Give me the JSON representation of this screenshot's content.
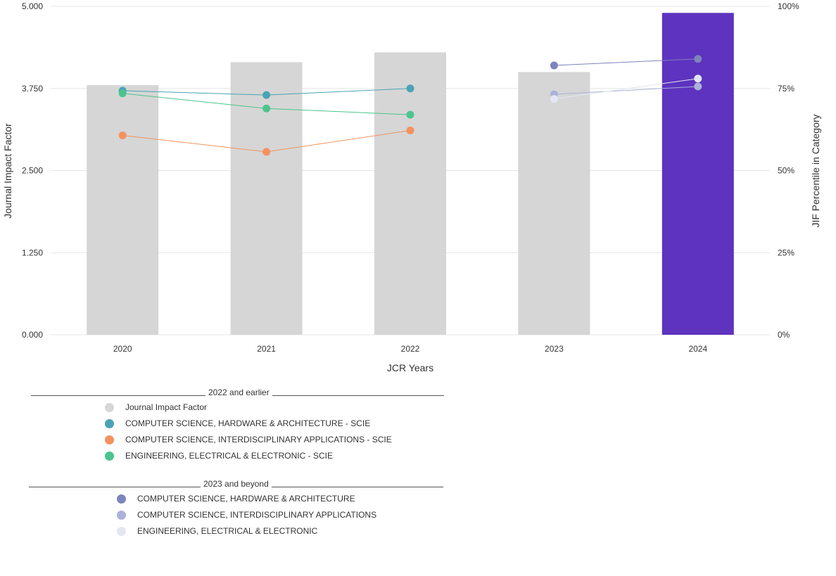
{
  "chart_data": {
    "type": "bar",
    "categories": [
      "2020",
      "2021",
      "2022",
      "2023",
      "2024"
    ],
    "xlabel": "JCR Years",
    "ylabel": "Journal Impact Factor",
    "y2label": "JIF Percentile in Category",
    "ylim": [
      0,
      5
    ],
    "y2lim": [
      0,
      100
    ],
    "yticks": [
      "0.000",
      "1.250",
      "2.500",
      "3.750",
      "5.000"
    ],
    "y2ticks": [
      "0%",
      "25%",
      "50%",
      "75%",
      "100%"
    ],
    "grid": true,
    "bars": {
      "name": "Journal Impact Factor",
      "values": [
        3.8,
        4.15,
        4.3,
        4.0,
        4.9
      ],
      "colors": [
        "#d6d6d6",
        "#d6d6d6",
        "#d6d6d6",
        "#d6d6d6",
        "#5e33bf"
      ]
    },
    "series": [
      {
        "name": "COMPUTER SCIENCE, HARDWARE & ARCHITECTURE - SCIE",
        "color": "#4aa3b5",
        "axis": "percentile",
        "values": [
          74.3,
          73.0,
          75.0,
          null,
          null
        ]
      },
      {
        "name": "COMPUTER SCIENCE, INTERDISCIPLINARY APPLICATIONS - SCIE",
        "color": "#f2925f",
        "axis": "percentile",
        "values": [
          60.7,
          55.7,
          62.2,
          null,
          null
        ]
      },
      {
        "name": "ENGINEERING, ELECTRICAL & ELECTRONIC - SCIE",
        "color": "#4cc48d",
        "axis": "percentile",
        "values": [
          73.5,
          68.9,
          67.0,
          null,
          null
        ]
      },
      {
        "name": "COMPUTER SCIENCE, HARDWARE & ARCHITECTURE",
        "color": "#7e84bd",
        "axis": "percentile",
        "values": [
          null,
          null,
          null,
          82.0,
          84.0
        ]
      },
      {
        "name": "COMPUTER SCIENCE, INTERDISCIPLINARY APPLICATIONS",
        "color": "#abb1d9",
        "axis": "percentile",
        "values": [
          null,
          null,
          null,
          73.2,
          75.6
        ]
      },
      {
        "name": "ENGINEERING, ELECTRICAL & ELECTRONIC",
        "color": "#e4e6f2",
        "axis": "percentile",
        "values": [
          null,
          null,
          null,
          71.8,
          78.0
        ]
      }
    ]
  },
  "legend": {
    "group1_title": "2022 and earlier",
    "group2_title": "2023 and beyond",
    "group1": [
      {
        "label": "Journal Impact Factor",
        "color": "#d6d6d6"
      },
      {
        "label": "COMPUTER SCIENCE, HARDWARE & ARCHITECTURE - SCIE",
        "color": "#4aa3b5"
      },
      {
        "label": "COMPUTER SCIENCE, INTERDISCIPLINARY APPLICATIONS - SCIE",
        "color": "#f2925f"
      },
      {
        "label": "ENGINEERING, ELECTRICAL & ELECTRONIC - SCIE",
        "color": "#4cc48d"
      }
    ],
    "group2": [
      {
        "label": "COMPUTER SCIENCE, HARDWARE & ARCHITECTURE",
        "color": "#7e84bd"
      },
      {
        "label": "COMPUTER SCIENCE, INTERDISCIPLINARY APPLICATIONS",
        "color": "#abb1d9"
      },
      {
        "label": "ENGINEERING, ELECTRICAL & ELECTRONIC",
        "color": "#e4e6f2"
      }
    ]
  }
}
